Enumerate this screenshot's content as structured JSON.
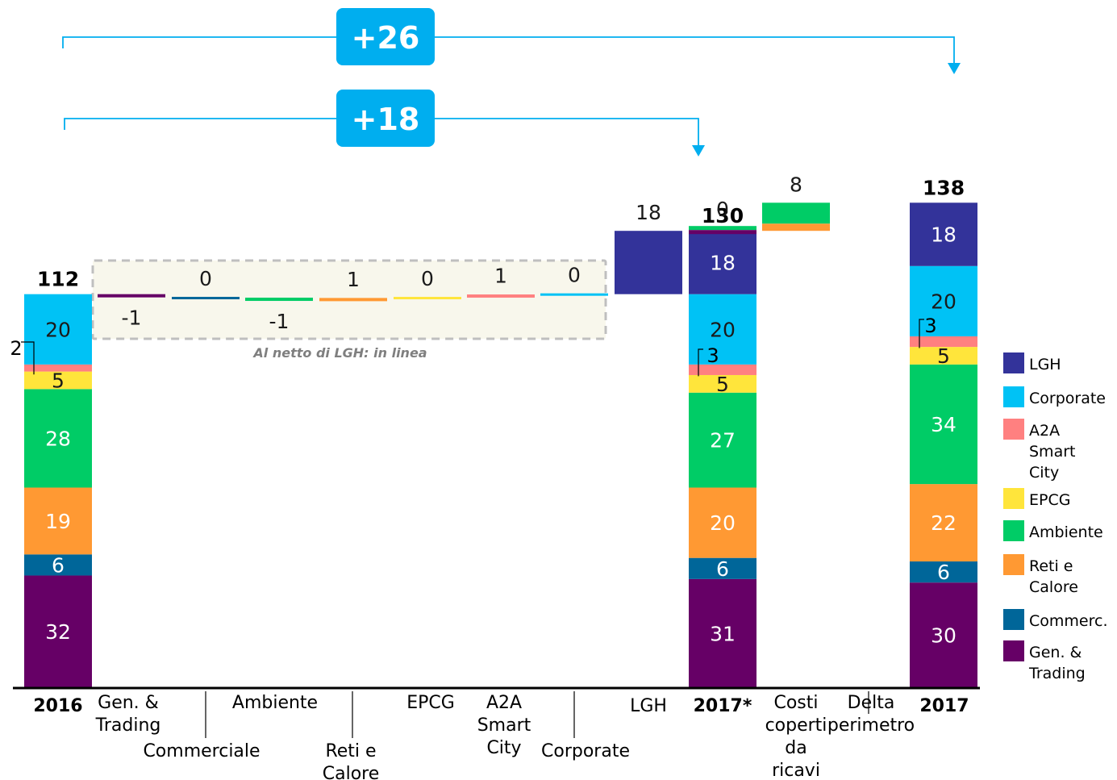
{
  "colors": {
    "LGH": "#33339A",
    "Corporate": "#00C2F5",
    "A2A Smart City": "#FF8080",
    "EPCG": "#FFE53B",
    "Ambiente": "#00CC66",
    "Reti e Calore": "#FF9933",
    "Commerc.": "#006699",
    "Gen. & Trading": "#660066",
    "callout_blue": "#00AEEF",
    "callout_text": "#ffffff",
    "dashed_box_fill": "#F8F7EC",
    "dashed_box_stroke": "#BFBFBF"
  },
  "chart_data": {
    "type": "bar",
    "subtype": "stacked waterfall",
    "legend": [
      "LGH",
      "Corporate",
      "A2A\nSmart\nCity",
      "EPCG",
      "Ambiente",
      "Reti e\nCalore",
      "Commerc.",
      "Gen. &\nTrading"
    ],
    "legend_keys": [
      "LGH",
      "Corporate",
      "A2A Smart City",
      "EPCG",
      "Ambiente",
      "Reti e Calore",
      "Commerc.",
      "Gen. & Trading"
    ],
    "legend_position": "right",
    "totals": [
      {
        "label": "2016",
        "total": 112,
        "stack": [
          {
            "series": "Gen. & Trading",
            "value": 32,
            "text": "32"
          },
          {
            "series": "Commerc.",
            "value": 6,
            "text": "6"
          },
          {
            "series": "Reti e Calore",
            "value": 19,
            "text": "19"
          },
          {
            "series": "Ambiente",
            "value": 28,
            "text": "28"
          },
          {
            "series": "EPCG",
            "value": 5,
            "text": "5"
          },
          {
            "series": "A2A Smart City",
            "value": 2,
            "text": "2"
          },
          {
            "series": "Corporate",
            "value": 20,
            "text": "20"
          }
        ]
      },
      {
        "label": "2017*",
        "total": 130,
        "stack": [
          {
            "series": "Gen. & Trading",
            "value": 31,
            "text": "31"
          },
          {
            "series": "Commerc.",
            "value": 6,
            "text": "6"
          },
          {
            "series": "Reti e Calore",
            "value": 20,
            "text": "20"
          },
          {
            "series": "Ambiente",
            "value": 27,
            "text": "27"
          },
          {
            "series": "EPCG",
            "value": 5,
            "text": "5"
          },
          {
            "series": "A2A Smart City",
            "value": 3,
            "text": "3"
          },
          {
            "series": "Corporate",
            "value": 20,
            "text": "20"
          },
          {
            "series": "LGH",
            "value": 18,
            "text": "18"
          }
        ]
      },
      {
        "label": "2017",
        "total": 138,
        "stack": [
          {
            "series": "Gen. & Trading",
            "value": 30,
            "text": "30"
          },
          {
            "series": "Commerc.",
            "value": 6,
            "text": "6"
          },
          {
            "series": "Reti e Calore",
            "value": 22,
            "text": "22"
          },
          {
            "series": "Ambiente",
            "value": 34,
            "text": "34"
          },
          {
            "series": "EPCG",
            "value": 5,
            "text": "5"
          },
          {
            "series": "A2A Smart City",
            "value": 3,
            "text": "3"
          },
          {
            "series": "Corporate",
            "value": 20,
            "text": "20"
          },
          {
            "series": "LGH",
            "value": 18,
            "text": "18"
          }
        ]
      }
    ],
    "deltas": [
      {
        "label": "Gen. & Trading",
        "series": "Gen. & Trading",
        "value": -1,
        "text": "-1"
      },
      {
        "label": "Commerciale",
        "series": "Commerc.",
        "value": 0,
        "text": "0"
      },
      {
        "label": "Ambiente",
        "series": "Ambiente",
        "value": -1,
        "text": "-1"
      },
      {
        "label": "Reti e Calore",
        "series": "Reti e Calore",
        "value": 1,
        "text": "1"
      },
      {
        "label": "EPCG",
        "series": "EPCG",
        "value": 0,
        "text": "0"
      },
      {
        "label": "A2A Smart City",
        "series": "A2A Smart City",
        "value": 1,
        "text": "1"
      },
      {
        "label": "Corporate",
        "series": "Corporate",
        "value": 0,
        "text": "0"
      },
      {
        "label": "LGH",
        "series": "LGH",
        "value": 18,
        "text": "18"
      },
      {
        "label": "Costi coperti da ricavi",
        "series": "Gen. & Trading",
        "value": 0,
        "text": "0"
      },
      {
        "label": "Delta perimetro",
        "series": "Ambiente",
        "value": 8,
        "text": "8"
      }
    ],
    "category_labels": [
      "2016",
      "Gen. &\nTrading",
      "Commerciale",
      "Ambiente",
      "Reti e\nCalore",
      "EPCG",
      "A2A\nSmart\nCity",
      "Corporate",
      "LGH",
      "2017*",
      "Costi\ncoperti\nda\nricavi",
      "Delta\nperimetro",
      "2017"
    ],
    "annotation": "Al netto di LGH: in linea",
    "callouts": [
      {
        "label": "+26",
        "from": "2016",
        "to": "2017"
      },
      {
        "label": "+18",
        "from": "2016",
        "to": "2017*"
      }
    ]
  }
}
